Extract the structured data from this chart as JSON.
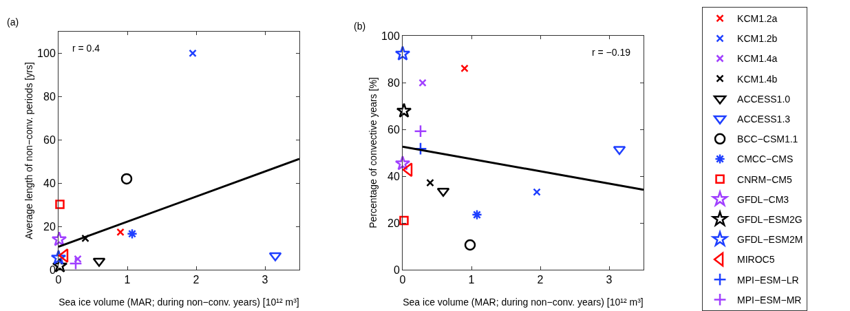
{
  "chart_data": [
    {
      "type": "scatter",
      "xlabel": "Sea ice volume (MAR; during non−conv. years) [10¹² m³]",
      "ylabel": "Average length of non−conv. periods [yrs]",
      "xlim": [
        0,
        3.5
      ],
      "ylim": [
        0,
        110
      ],
      "xticks": [
        0,
        1,
        2,
        3
      ],
      "yticks": [
        0,
        20,
        40,
        60,
        80,
        100
      ],
      "grid": false,
      "legend": false,
      "annotations": [
        "(a)",
        "r = 0.4"
      ],
      "series": [
        {
          "color": "#ff0000",
          "marker": "x",
          "x": [
            0.9
          ],
          "values": [
            17.4
          ]
        },
        {
          "color": "#1f3fff",
          "marker": "x",
          "x": [
            1.95
          ],
          "values": [
            100
          ]
        },
        {
          "color": "#a040ff",
          "marker": "x",
          "x": [
            0.28
          ],
          "values": [
            5
          ]
        },
        {
          "color": "#000000",
          "marker": "x",
          "x": [
            0.39
          ],
          "values": [
            14.5
          ]
        },
        {
          "color": "#000000",
          "marker": "triangle-down",
          "x": [
            0.59
          ],
          "values": [
            4
          ]
        },
        {
          "color": "#1f3fff",
          "marker": "triangle-down",
          "x": [
            3.15
          ],
          "values": [
            6.5
          ]
        },
        {
          "color": "#000000",
          "marker": "circle",
          "x": [
            0.99
          ],
          "values": [
            42
          ]
        },
        {
          "color": "#1f3fff",
          "x": [
            1.07
          ],
          "values": [
            16.6
          ]
        },
        {
          "color": "#ff0000",
          "marker": "square",
          "x": [
            0.02
          ],
          "values": [
            30.2
          ]
        },
        {
          "color": "#a040ff",
          "marker": "star",
          "x": [
            0.01
          ],
          "values": [
            14
          ]
        },
        {
          "color": "#000000",
          "marker": "star",
          "x": [
            0.02
          ],
          "values": [
            1.8
          ]
        },
        {
          "color": "#1f3fff",
          "marker": "star",
          "x": [
            0
          ],
          "values": [
            5.5
          ]
        },
        {
          "color": "#ff0000",
          "marker": "triangle-left",
          "x": [
            0.09
          ],
          "values": [
            6.5
          ]
        },
        {
          "color": "#a040ff",
          "marker": "cross",
          "x": [
            0.25
          ],
          "values": [
            2.9
          ]
        },
        {
          "type": "line",
          "color": "#000000",
          "x": [
            0,
            3.5
          ],
          "values": [
            10.6,
            51.2
          ]
        }
      ]
    },
    {
      "type": "scatter",
      "xlabel": "Sea ice volume (MAR; during non−conv. years) [10¹² m³]",
      "ylabel": "Percentage of convective years [%]",
      "xlim": [
        0,
        3.5
      ],
      "ylim": [
        0,
        100
      ],
      "xticks": [
        0,
        1,
        2,
        3
      ],
      "yticks": [
        0,
        20,
        40,
        60,
        80,
        100
      ],
      "grid": false,
      "legend": "right",
      "annotations": [
        "(b)",
        "r = −0.19"
      ],
      "series": [
        {
          "name": "KCM1.2a",
          "color": "#ff0000",
          "marker": "x",
          "x": [
            0.9
          ],
          "values": [
            86.1
          ]
        },
        {
          "name": "KCM1.2b",
          "color": "#1f3fff",
          "marker": "x",
          "x": [
            1.95
          ],
          "values": [
            33.2
          ]
        },
        {
          "name": "KCM1.4a",
          "color": "#a040ff",
          "marker": "x",
          "x": [
            0.29
          ],
          "values": [
            79.9
          ]
        },
        {
          "name": "KCM1.4b",
          "color": "#000000",
          "marker": "x",
          "x": [
            0.4
          ],
          "values": [
            37.2
          ]
        },
        {
          "name": "ACCESS1.0",
          "color": "#000000",
          "marker": "triangle-down",
          "x": [
            0.59
          ],
          "values": [
            33.6
          ]
        },
        {
          "name": "ACCESS1.3",
          "color": "#1f3fff",
          "marker": "triangle-down",
          "x": [
            3.15
          ],
          "values": [
            51.5
          ]
        },
        {
          "name": "BCC−CSM1.1",
          "color": "#000000",
          "marker": "circle",
          "x": [
            0.98
          ],
          "values": [
            10.6
          ]
        },
        {
          "name": "CMCC−CMS",
          "color": "#1f3fff",
          "x": [
            1.08
          ],
          "values": [
            23.5
          ]
        },
        {
          "name": "CNRM−CM5",
          "color": "#ff0000",
          "marker": "square",
          "x": [
            0.02
          ],
          "values": [
            21
          ]
        },
        {
          "name": "GFDL−CM3",
          "color": "#a040ff",
          "marker": "star",
          "x": [
            0
          ],
          "values": [
            45.4
          ]
        },
        {
          "name": "GFDL−ESM2G",
          "color": "#000000",
          "marker": "star",
          "x": [
            0.02
          ],
          "values": [
            67.9
          ]
        },
        {
          "name": "GFDL−ESM2M",
          "color": "#1f3fff",
          "marker": "star",
          "x": [
            0
          ],
          "values": [
            92.3
          ]
        },
        {
          "name": "MIROC5",
          "color": "#ff0000",
          "marker": "triangle-left",
          "x": [
            0.09
          ],
          "values": [
            42.7
          ]
        },
        {
          "name": "MPI−ESM−LR",
          "color": "#1f3fff",
          "marker": "cross",
          "x": [
            0.26
          ],
          "values": [
            51.7
          ]
        },
        {
          "name": "MPI−ESM−MR",
          "color": "#a040ff",
          "marker": "cross",
          "x": [
            0.26
          ],
          "values": [
            59.2
          ]
        },
        {
          "type": "line",
          "color": "#000000",
          "x": [
            0,
            3.5
          ],
          "values": [
            52.6,
            34.2
          ]
        }
      ]
    }
  ]
}
